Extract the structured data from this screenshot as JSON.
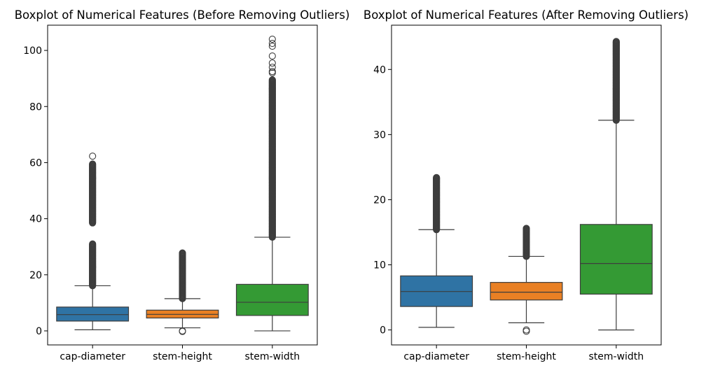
{
  "chart_data": [
    {
      "type": "boxplot",
      "title": "Boxplot of Numerical Features (Before Removing Outliers)",
      "xlabel": "",
      "ylabel": "",
      "ylim": [
        -5,
        109
      ],
      "yticks": [
        "0",
        "20",
        "40",
        "60",
        "80",
        "100"
      ],
      "categories": [
        "cap-diameter",
        "stem-height",
        "stem-width"
      ],
      "colors": [
        "#2f73a4",
        "#e98024",
        "#349a34"
      ],
      "boxes": [
        {
          "name": "cap-diameter",
          "whisker_low": 0.4,
          "q1": 3.5,
          "median": 5.8,
          "q3": 8.5,
          "whisker_high": 16.1,
          "outlier_ranges": [
            [
              16.1,
              31.0
            ],
            [
              38.5,
              59.5
            ]
          ],
          "outliers": [
            62.3
          ]
        },
        {
          "name": "stem-height",
          "whisker_low": 1.1,
          "q1": 4.6,
          "median": 5.9,
          "q3": 7.4,
          "whisker_high": 11.5,
          "outlier_ranges": [
            [
              11.5,
              27.8
            ]
          ],
          "outliers": [
            0.0,
            -0.2
          ]
        },
        {
          "name": "stem-width",
          "whisker_low": 0.0,
          "q1": 5.5,
          "median": 10.2,
          "q3": 16.6,
          "whisker_high": 33.4,
          "outlier_ranges": [
            [
              33.4,
              89.5
            ]
          ],
          "outliers": [
            92.0,
            92.5,
            94.0,
            95.5,
            98.0,
            101.5,
            102.5,
            104.0
          ]
        }
      ]
    },
    {
      "type": "boxplot",
      "title": "Boxplot of Numerical Features (After Removing Outliers)",
      "xlabel": "",
      "ylabel": "",
      "ylim": [
        -2.3,
        46.8
      ],
      "yticks": [
        "0",
        "10",
        "20",
        "30",
        "40"
      ],
      "categories": [
        "cap-diameter",
        "stem-height",
        "stem-width"
      ],
      "colors": [
        "#2f73a4",
        "#e98024",
        "#349a34"
      ],
      "boxes": [
        {
          "name": "cap-diameter",
          "whisker_low": 0.4,
          "q1": 3.6,
          "median": 5.9,
          "q3": 8.3,
          "whisker_high": 15.4,
          "outlier_ranges": [
            [
              15.4,
              23.4
            ]
          ],
          "outliers": []
        },
        {
          "name": "stem-height",
          "whisker_low": 1.1,
          "q1": 4.6,
          "median": 5.8,
          "q3": 7.3,
          "whisker_high": 11.3,
          "outlier_ranges": [
            [
              11.3,
              15.6
            ]
          ],
          "outliers": [
            0.0,
            -0.2
          ]
        },
        {
          "name": "stem-width",
          "whisker_low": 0.0,
          "q1": 5.5,
          "median": 10.2,
          "q3": 16.2,
          "whisker_high": 32.2,
          "outlier_ranges": [
            [
              32.2,
              44.3
            ]
          ],
          "outliers": []
        }
      ]
    }
  ]
}
